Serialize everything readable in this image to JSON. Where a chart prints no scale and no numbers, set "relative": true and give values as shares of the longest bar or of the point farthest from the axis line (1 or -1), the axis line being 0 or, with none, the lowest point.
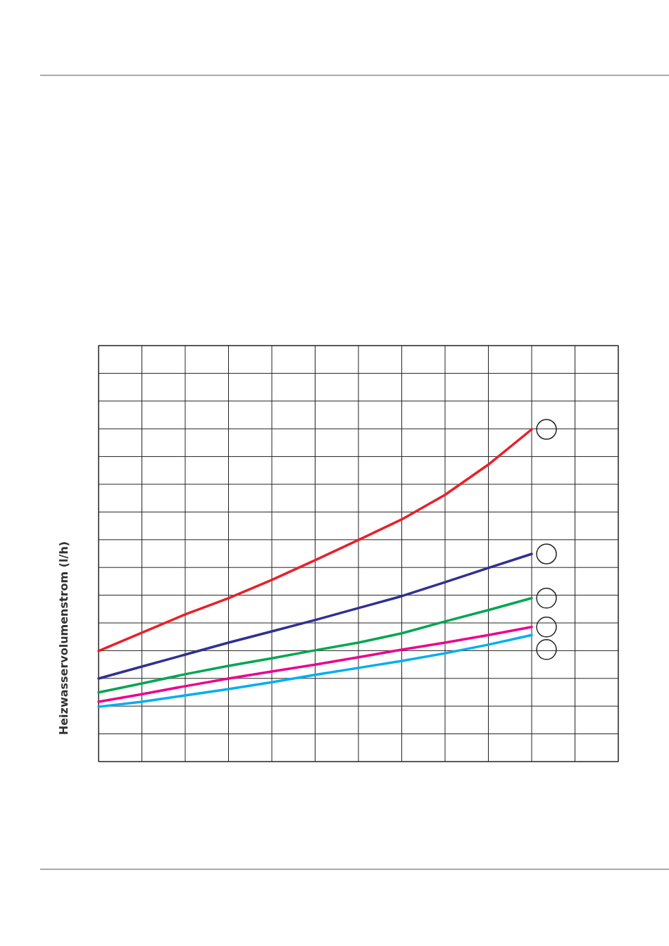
{
  "chart_data": {
    "type": "line",
    "ylabel": "Heizwasservolumenstrom (l/h)",
    "relative": true,
    "grid": true,
    "marker": "none",
    "line_style": "solid",
    "categories": [
      null,
      null,
      null,
      null,
      null,
      null,
      null,
      null,
      null,
      null,
      null,
      null,
      null
    ],
    "series": [
      {
        "color": "#e8202a",
        "values": [
          0.333,
          0.388,
          0.443,
          0.492,
          0.547,
          0.606,
          0.667,
          0.729,
          0.803,
          0.894,
          1,
          null,
          null
        ]
      },
      {
        "color": "#2e3192",
        "values": [
          0.25,
          0.286,
          0.322,
          0.358,
          0.392,
          0.426,
          0.462,
          0.498,
          0.54,
          0.583,
          0.625,
          null,
          null
        ]
      },
      {
        "color": "#00a651",
        "values": [
          0.208,
          0.235,
          0.263,
          0.288,
          0.311,
          0.335,
          0.358,
          0.386,
          0.422,
          0.456,
          0.492,
          null,
          null
        ]
      },
      {
        "color": "#ec008c",
        "values": [
          0.18,
          0.203,
          0.227,
          0.25,
          0.271,
          0.292,
          0.314,
          0.337,
          0.358,
          0.381,
          0.405,
          null,
          null
        ]
      },
      {
        "color": "#00aeef",
        "values": [
          0.165,
          0.18,
          0.199,
          0.218,
          0.239,
          0.261,
          0.282,
          0.303,
          0.326,
          0.352,
          0.381,
          null,
          null
        ]
      }
    ]
  }
}
